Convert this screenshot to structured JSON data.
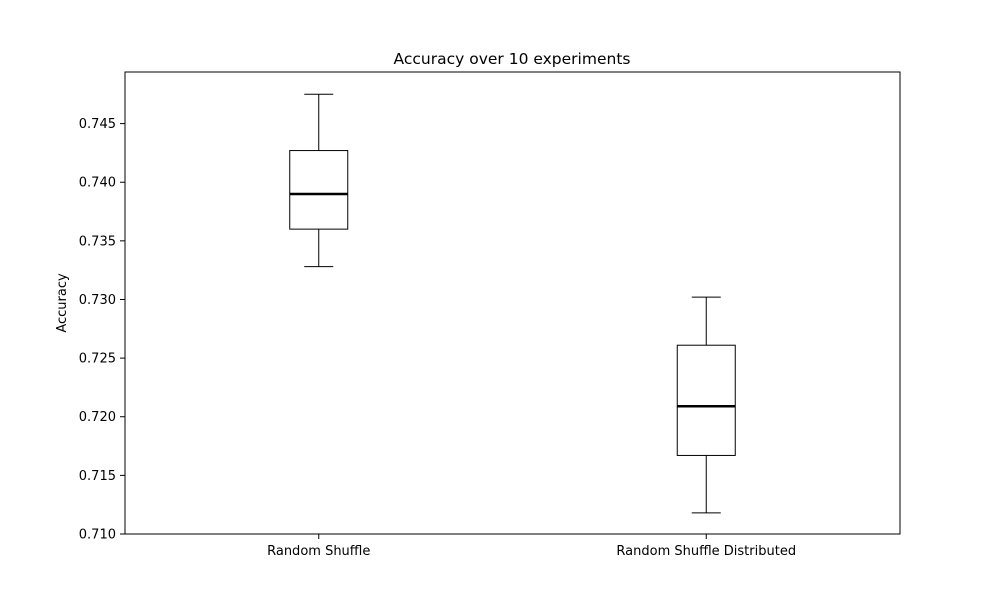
{
  "chart_data": {
    "type": "box",
    "title": "Accuracy over 10 experiments",
    "xlabel": "",
    "ylabel": "Accuracy",
    "ylim": [
      0.71,
      0.7494
    ],
    "yticks": [
      "0.710",
      "0.715",
      "0.720",
      "0.725",
      "0.730",
      "0.735",
      "0.740",
      "0.745"
    ],
    "grid": false,
    "categories": [
      "Random Shuffle",
      "Random Shuffle Distributed"
    ],
    "boxes": [
      {
        "whisker_low": 0.7328,
        "q1": 0.736,
        "median": 0.739,
        "q3": 0.7427,
        "whisker_high": 0.7475
      },
      {
        "whisker_low": 0.7118,
        "q1": 0.7167,
        "median": 0.7209,
        "q3": 0.7261,
        "whisker_high": 0.7302
      }
    ],
    "colors": {
      "box_edge": "#000000",
      "median": "#000000",
      "background": "#ffffff"
    }
  }
}
